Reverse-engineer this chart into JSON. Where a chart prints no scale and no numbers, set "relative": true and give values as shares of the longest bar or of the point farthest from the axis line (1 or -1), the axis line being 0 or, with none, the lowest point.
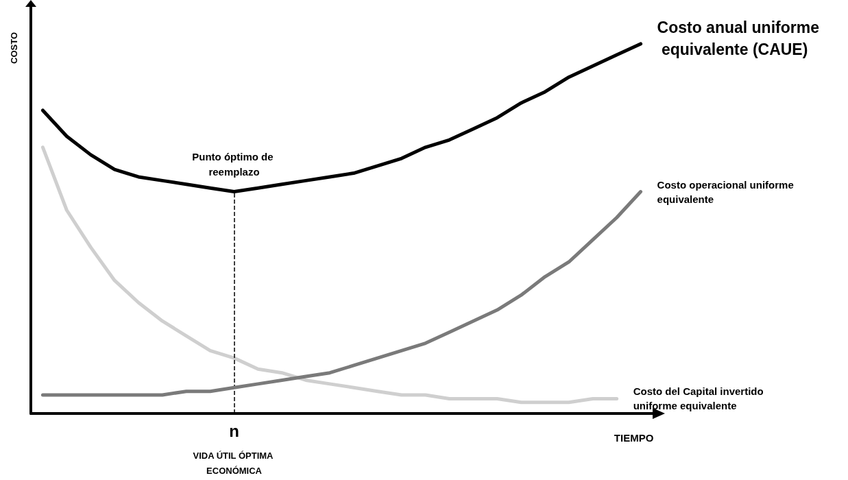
{
  "chart_data": {
    "type": "line",
    "relative": true,
    "xlabel": "TIEMPO",
    "ylabel": "COSTO",
    "legend": false,
    "grid": false,
    "marker": "none",
    "categories": [
      null,
      null,
      null,
      null,
      null,
      null,
      null,
      null,
      null,
      null,
      null,
      null,
      null,
      null,
      null,
      null,
      null,
      null,
      null,
      null,
      null,
      null,
      null,
      null,
      null,
      null
    ],
    "series": [
      {
        "name": "Costo anual uniforme equivalente (CAUE)",
        "color": "#000000",
        "values": [
          0.82,
          0.75,
          0.7,
          0.66,
          0.64,
          0.63,
          0.62,
          0.61,
          0.6,
          0.61,
          0.62,
          0.63,
          0.64,
          0.65,
          0.67,
          0.69,
          0.72,
          0.74,
          0.77,
          0.8,
          0.84,
          0.87,
          0.91,
          0.94,
          0.97,
          1
        ]
      },
      {
        "name": "Costo operacional uniforme equivalente",
        "color": "#7a7a7a",
        "values": [
          0.05,
          0.05,
          0.05,
          0.05,
          0.05,
          0.05,
          0.06,
          0.06,
          0.07,
          0.08,
          0.09,
          0.1,
          0.11,
          0.13,
          0.15,
          0.17,
          0.19,
          0.22,
          0.25,
          0.28,
          0.32,
          0.37,
          0.41,
          0.47,
          0.53,
          0.6
        ]
      },
      {
        "name": "Costo del Capital invertido uniforme equivalente",
        "color": "#cfcfcf",
        "values": [
          0.72,
          0.55,
          0.45,
          0.36,
          0.3,
          0.25,
          0.21,
          0.17,
          0.15,
          0.12,
          0.11,
          0.09,
          0.08,
          0.07,
          0.06,
          0.05,
          0.05,
          0.04,
          0.04,
          0.04,
          0.03,
          0.03,
          0.03,
          0.04,
          0.04,
          null
        ]
      }
    ],
    "annotations": [
      "Punto óptimo de reemplazo",
      "n",
      "VIDA ÚTIL ÓPTIMA ECONÓMICA"
    ]
  }
}
